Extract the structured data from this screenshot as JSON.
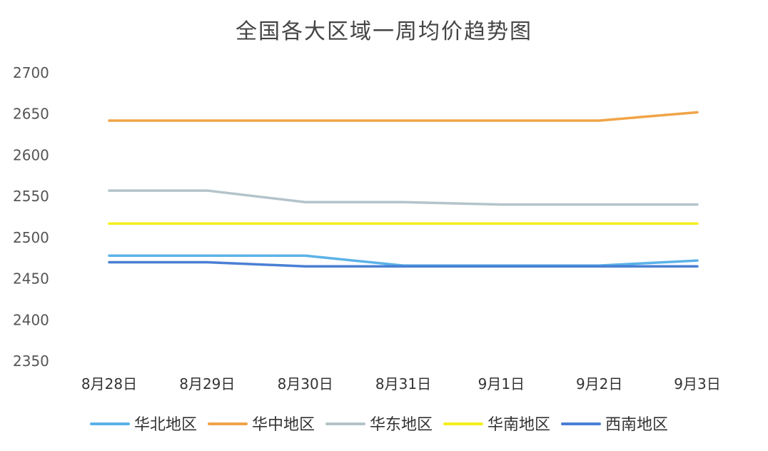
{
  "chart_data": {
    "type": "line",
    "title": "全国各大区域一周均价趋势图",
    "xlabel": "",
    "ylabel": "",
    "categories": [
      "8月28日",
      "8月29日",
      "8月30日",
      "8月31日",
      "9月1日",
      "9月2日",
      "9月3日"
    ],
    "ylim": [
      2350,
      2700
    ],
    "yticks": [
      2350,
      2400,
      2450,
      2500,
      2550,
      2600,
      2650,
      2700
    ],
    "grid": false,
    "legend_position": "bottom",
    "series": [
      {
        "name": "华北地区",
        "color": "#5bb2e8",
        "values": [
          2478,
          2478,
          2478,
          2466,
          2466,
          2466,
          2472
        ]
      },
      {
        "name": "华中地区",
        "color": "#f0a447",
        "values": [
          2642,
          2642,
          2642,
          2642,
          2642,
          2642,
          2652
        ]
      },
      {
        "name": "华东地区",
        "color": "#b3c4ca",
        "values": [
          2557,
          2557,
          2543,
          2543,
          2540,
          2540,
          2540
        ]
      },
      {
        "name": "华南地区",
        "color": "#f5ef1c",
        "values": [
          2517,
          2517,
          2517,
          2517,
          2517,
          2517,
          2517
        ]
      },
      {
        "name": "西南地区",
        "color": "#4a7fd4",
        "values": [
          2470,
          2470,
          2465,
          2465,
          2465,
          2465,
          2465
        ]
      }
    ]
  }
}
